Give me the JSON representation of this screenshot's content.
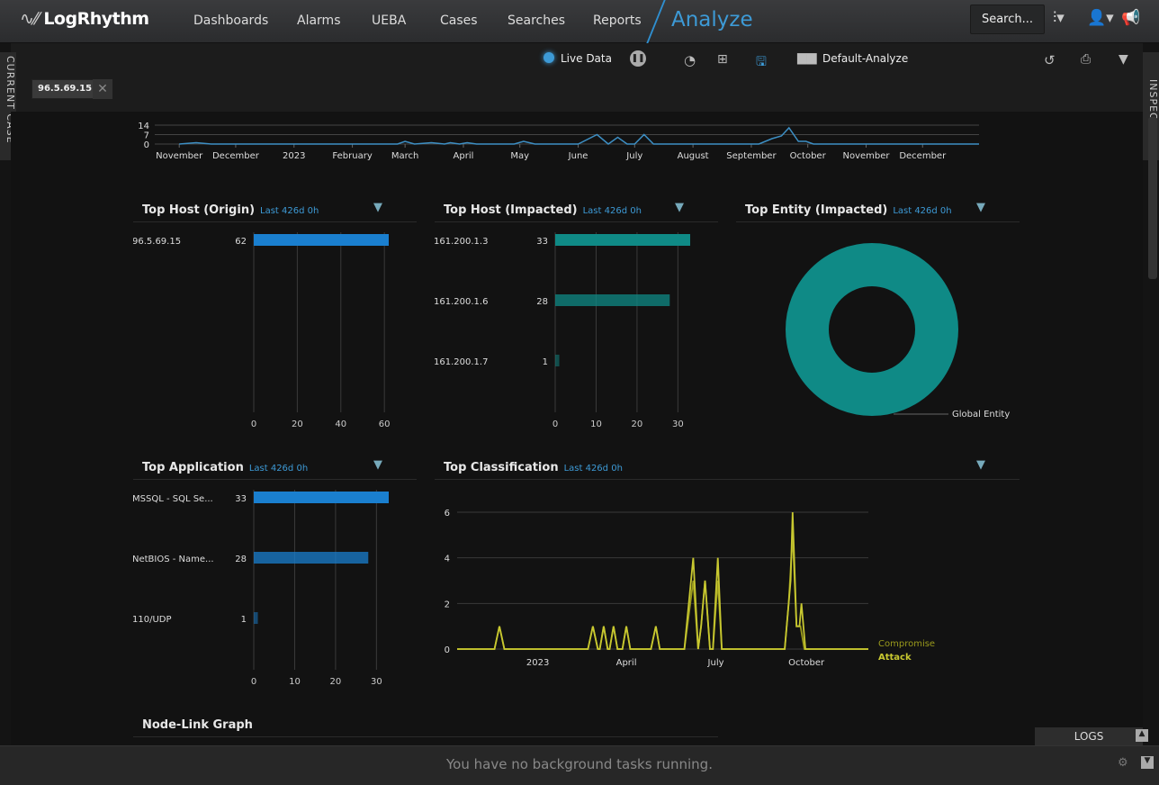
{
  "header": {
    "logo": "LogRhythm",
    "nav": [
      "Dashboards",
      "Alarms",
      "UEBA",
      "Cases",
      "Searches",
      "Reports"
    ],
    "active": "Analyze",
    "search_label": "Search..."
  },
  "toolbar": {
    "live_data": "Live Data",
    "layout_name": "Default-Analyze"
  },
  "filter_chip": "96.5.69.15",
  "side": {
    "left": "CURRENT CASE",
    "right": "INSPECTOR"
  },
  "timeline": {
    "type": "line",
    "yticks": [
      0,
      7,
      14
    ],
    "xticks": [
      "November",
      "December",
      "2023",
      "February",
      "March",
      "April",
      "May",
      "June",
      "July",
      "August",
      "September",
      "October",
      "November",
      "December"
    ],
    "color": "#3d8fc4",
    "points": [
      [
        "2022-11-01",
        0
      ],
      [
        "2022-11-10",
        1
      ],
      [
        "2022-11-18",
        0
      ],
      [
        "2023-02-25",
        0
      ],
      [
        "2023-03-01",
        2
      ],
      [
        "2023-03-06",
        0
      ],
      [
        "2023-03-15",
        1
      ],
      [
        "2023-03-22",
        0
      ],
      [
        "2023-03-25",
        1
      ],
      [
        "2023-03-30",
        0
      ],
      [
        "2023-04-03",
        1
      ],
      [
        "2023-04-08",
        0
      ],
      [
        "2023-04-28",
        0
      ],
      [
        "2023-05-03",
        2
      ],
      [
        "2023-05-09",
        0
      ],
      [
        "2023-06-01",
        0
      ],
      [
        "2023-06-11",
        7
      ],
      [
        "2023-06-17",
        0
      ],
      [
        "2023-06-22",
        5
      ],
      [
        "2023-06-27",
        0
      ],
      [
        "2023-07-01",
        0
      ],
      [
        "2023-07-06",
        7
      ],
      [
        "2023-07-11",
        0
      ],
      [
        "2023-09-05",
        0
      ],
      [
        "2023-09-12",
        4
      ],
      [
        "2023-09-17",
        6
      ],
      [
        "2023-09-21",
        12
      ],
      [
        "2023-09-26",
        2
      ],
      [
        "2023-09-30",
        2
      ],
      [
        "2023-10-04",
        0
      ],
      [
        "2023-12-31",
        0
      ]
    ]
  },
  "panels": [
    {
      "title": "Top Host (Origin)",
      "sub": "Last 426d 0h",
      "type": "bar",
      "color": "#1a7fcf",
      "labels": [
        "96.5.69.15"
      ],
      "values": [
        62
      ],
      "xticks": [
        0,
        20,
        40,
        60
      ],
      "xmax": 62
    },
    {
      "title": "Top Host (Impacted)",
      "sub": "Last 426d 0h",
      "type": "bar",
      "color": "#0f8a86",
      "labels": [
        "161.200.1.3",
        "161.200.1.6",
        "161.200.1.7"
      ],
      "values": [
        33,
        28,
        1
      ],
      "xticks": [
        0,
        10,
        20,
        30
      ],
      "xmax": 33
    },
    {
      "title": "Top Entity (Impacted)",
      "sub": "Last 426d 0h",
      "type": "pie",
      "color": "#0f8a86",
      "slices": [
        {
          "label": "Global Entity",
          "value": 100
        }
      ]
    },
    {
      "title": "Top Application",
      "sub": "Last 426d 0h",
      "type": "bar",
      "color": "#1a7fcf",
      "labels": [
        "MSSQL - SQL Se...",
        "NetBIOS - Name...",
        "110/UDP"
      ],
      "values": [
        33,
        28,
        1
      ],
      "xticks": [
        0,
        10,
        20,
        30
      ],
      "xmax": 33
    },
    {
      "title": "Top Classification",
      "sub": "Last 426d 0h",
      "type": "line"
    },
    {
      "title": "Node-Link Graph"
    }
  ],
  "chart_data": {
    "type": "line",
    "yticks": [
      0,
      2,
      4,
      6
    ],
    "ylim": [
      0,
      6
    ],
    "xticks": [
      [
        "2023",
        "2023-01-01"
      ],
      [
        "April",
        "2023-04-01"
      ],
      [
        "July",
        "2023-07-01"
      ],
      [
        "October",
        "2023-10-01"
      ]
    ],
    "series": [
      {
        "name": "Compromise",
        "color": "#9a9a1c",
        "points": [
          [
            "2022-10-11",
            0
          ],
          [
            "2022-11-18",
            0
          ],
          [
            "2022-11-23",
            1
          ],
          [
            "2022-11-28",
            0
          ],
          [
            "2023-02-21",
            0
          ],
          [
            "2023-02-26",
            1
          ],
          [
            "2023-03-03",
            0
          ],
          [
            "2023-03-05",
            0
          ],
          [
            "2023-03-09",
            1
          ],
          [
            "2023-03-13",
            0
          ],
          [
            "2023-03-15",
            0
          ],
          [
            "2023-03-19",
            1
          ],
          [
            "2023-03-23",
            0
          ],
          [
            "2023-03-28",
            0
          ],
          [
            "2023-04-01",
            1
          ],
          [
            "2023-04-05",
            0
          ],
          [
            "2023-04-26",
            0
          ],
          [
            "2023-05-01",
            1
          ],
          [
            "2023-05-05",
            0
          ],
          [
            "2023-05-30",
            0
          ],
          [
            "2023-06-08",
            3
          ],
          [
            "2023-06-13",
            0
          ],
          [
            "2023-06-16",
            1
          ],
          [
            "2023-06-20",
            3
          ],
          [
            "2023-06-25",
            0
          ],
          [
            "2023-06-28",
            0
          ],
          [
            "2023-07-03",
            3
          ],
          [
            "2023-07-07",
            0
          ],
          [
            "2023-09-09",
            0
          ],
          [
            "2023-09-13",
            2
          ],
          [
            "2023-09-17",
            5
          ],
          [
            "2023-09-21",
            1
          ],
          [
            "2023-09-25",
            1
          ],
          [
            "2023-09-29",
            0
          ],
          [
            "2023-12-03",
            0
          ]
        ]
      },
      {
        "name": "Attack",
        "color": "#c8c830",
        "points": [
          [
            "2022-10-11",
            0
          ],
          [
            "2022-11-18",
            0
          ],
          [
            "2022-11-23",
            1
          ],
          [
            "2022-11-28",
            0
          ],
          [
            "2023-02-21",
            0
          ],
          [
            "2023-02-26",
            1
          ],
          [
            "2023-03-03",
            0
          ],
          [
            "2023-03-05",
            0
          ],
          [
            "2023-03-09",
            1
          ],
          [
            "2023-03-13",
            0
          ],
          [
            "2023-03-15",
            0
          ],
          [
            "2023-03-19",
            1
          ],
          [
            "2023-03-23",
            0
          ],
          [
            "2023-03-28",
            0
          ],
          [
            "2023-04-01",
            1
          ],
          [
            "2023-04-05",
            0
          ],
          [
            "2023-04-26",
            0
          ],
          [
            "2023-05-01",
            1
          ],
          [
            "2023-05-05",
            0
          ],
          [
            "2023-05-30",
            0
          ],
          [
            "2023-06-08",
            4
          ],
          [
            "2023-06-13",
            0
          ],
          [
            "2023-06-16",
            1
          ],
          [
            "2023-06-20",
            3
          ],
          [
            "2023-06-25",
            0
          ],
          [
            "2023-06-28",
            0
          ],
          [
            "2023-07-03",
            4
          ],
          [
            "2023-07-07",
            0
          ],
          [
            "2023-09-09",
            0
          ],
          [
            "2023-09-13",
            2
          ],
          [
            "2023-09-15",
            3
          ],
          [
            "2023-09-17",
            6
          ],
          [
            "2023-09-21",
            1
          ],
          [
            "2023-09-24",
            1
          ],
          [
            "2023-09-26",
            2
          ],
          [
            "2023-09-30",
            0
          ],
          [
            "2023-12-03",
            0
          ]
        ]
      }
    ]
  },
  "footer": {
    "message": "You have no background tasks running.",
    "logs_label": "LOGS"
  }
}
